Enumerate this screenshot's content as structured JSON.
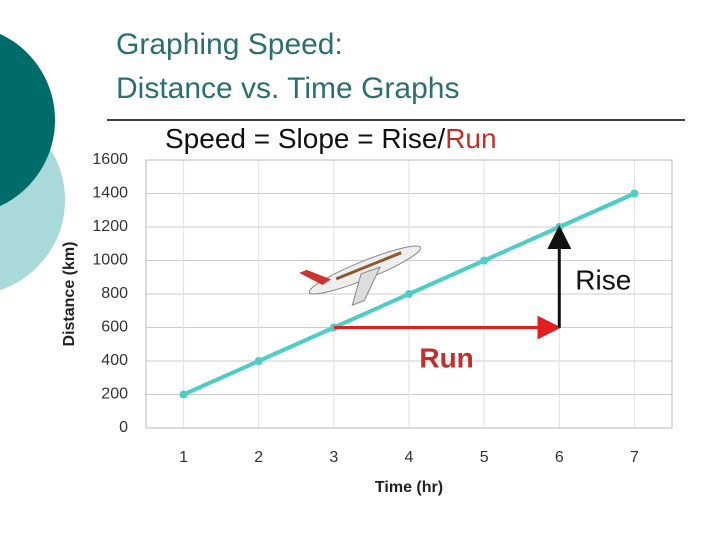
{
  "chart_data": {
    "type": "line",
    "title": [
      "Graphing Speed:",
      "Distance vs. Time Graphs"
    ],
    "subtitle": [
      "Speed = Slope = Rise/",
      "Run"
    ],
    "x_label": "Time (hr)",
    "y_label": "Distance (km)",
    "x": [
      1,
      2,
      3,
      4,
      5,
      6,
      7
    ],
    "series": [
      {
        "name": "Distance",
        "color": "#4ecdc4",
        "values": [
          200,
          400,
          600,
          800,
          1000,
          1200,
          1400
        ]
      }
    ],
    "xlim": [
      0.5,
      7.5
    ],
    "xticks": [
      1,
      2,
      3,
      4,
      5,
      6,
      7
    ],
    "ylim": [
      0,
      1600
    ],
    "yticks": [
      0,
      200,
      400,
      600,
      800,
      1000,
      1200,
      1400,
      1600
    ],
    "grid": true,
    "annotations": [
      "Rise",
      "Run"
    ]
  }
}
